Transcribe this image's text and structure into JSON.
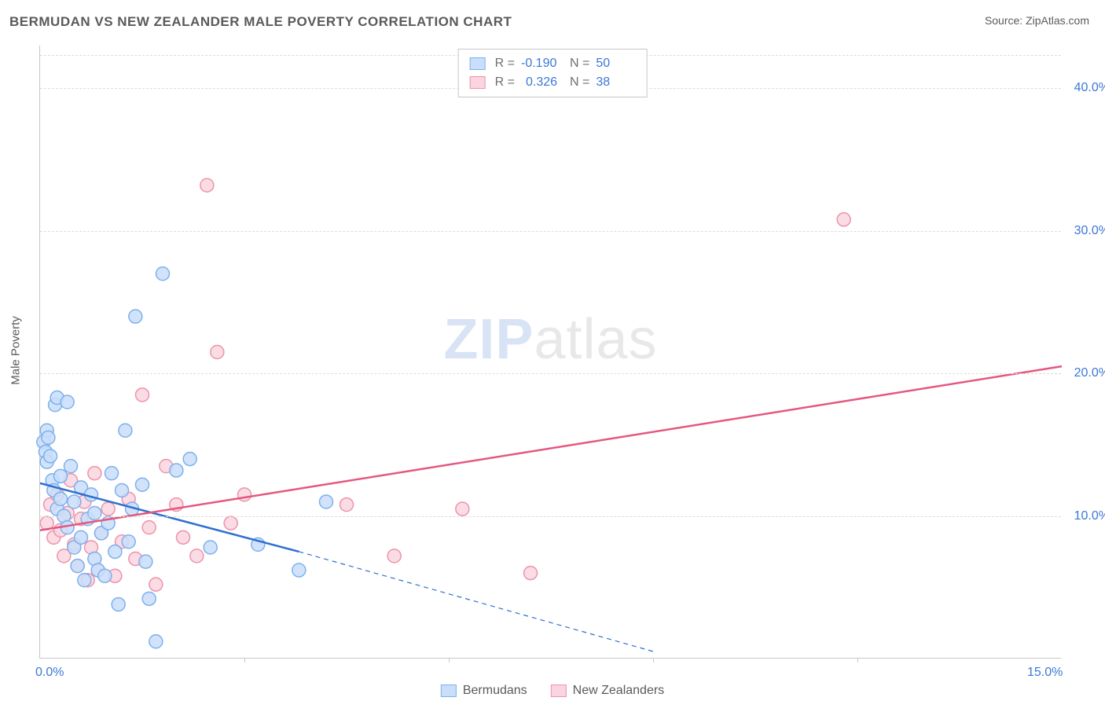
{
  "title": "BERMUDAN VS NEW ZEALANDER MALE POVERTY CORRELATION CHART",
  "source_label": "Source: ",
  "source_value": "ZipAtlas.com",
  "y_axis_label": "Male Poverty",
  "watermark_a": "ZIP",
  "watermark_b": "atlas",
  "chart": {
    "type": "scatter",
    "xlim": [
      0,
      15
    ],
    "ylim": [
      0,
      43
    ],
    "x_ticks_major": [
      0,
      15
    ],
    "x_ticks_minor": [
      3,
      6,
      9,
      12
    ],
    "y_ticks": [
      10,
      20,
      30,
      40
    ],
    "x_tick_labels": [
      "0.0%",
      "15.0%"
    ],
    "y_tick_labels": [
      "10.0%",
      "20.0%",
      "30.0%",
      "40.0%"
    ],
    "grid_color": "#dcdcdc",
    "axis_color": "#c7c7c7",
    "background": "#ffffff",
    "marker_radius": 8.5,
    "marker_stroke_width": 1.5,
    "line_width": 2.5
  },
  "series": {
    "bermudans": {
      "label": "Bermudans",
      "fill": "#c9defa",
      "stroke": "#7eb0ec",
      "line_color": "#2f6fd0",
      "r_value": "-0.190",
      "n_value": "50",
      "points": [
        [
          0.05,
          15.2
        ],
        [
          0.08,
          14.5
        ],
        [
          0.1,
          16.0
        ],
        [
          0.1,
          13.8
        ],
        [
          0.12,
          15.5
        ],
        [
          0.15,
          14.2
        ],
        [
          0.18,
          12.5
        ],
        [
          0.2,
          11.8
        ],
        [
          0.22,
          17.8
        ],
        [
          0.25,
          18.3
        ],
        [
          0.25,
          10.5
        ],
        [
          0.3,
          11.2
        ],
        [
          0.3,
          12.8
        ],
        [
          0.35,
          10.0
        ],
        [
          0.4,
          18.0
        ],
        [
          0.4,
          9.2
        ],
        [
          0.45,
          13.5
        ],
        [
          0.5,
          7.8
        ],
        [
          0.5,
          11.0
        ],
        [
          0.55,
          6.5
        ],
        [
          0.6,
          8.5
        ],
        [
          0.6,
          12.0
        ],
        [
          0.65,
          5.5
        ],
        [
          0.7,
          9.8
        ],
        [
          0.75,
          11.5
        ],
        [
          0.8,
          7.0
        ],
        [
          0.8,
          10.2
        ],
        [
          0.85,
          6.2
        ],
        [
          0.9,
          8.8
        ],
        [
          0.95,
          5.8
        ],
        [
          1.0,
          9.5
        ],
        [
          1.05,
          13.0
        ],
        [
          1.1,
          7.5
        ],
        [
          1.15,
          3.8
        ],
        [
          1.2,
          11.8
        ],
        [
          1.25,
          16.0
        ],
        [
          1.3,
          8.2
        ],
        [
          1.35,
          10.5
        ],
        [
          1.4,
          24.0
        ],
        [
          1.5,
          12.2
        ],
        [
          1.55,
          6.8
        ],
        [
          1.6,
          4.2
        ],
        [
          1.7,
          1.2
        ],
        [
          1.8,
          27.0
        ],
        [
          2.0,
          13.2
        ],
        [
          2.2,
          14.0
        ],
        [
          2.5,
          7.8
        ],
        [
          3.2,
          8.0
        ],
        [
          3.8,
          6.2
        ],
        [
          4.2,
          11.0
        ]
      ],
      "regression": {
        "x1": 0,
        "y1": 12.3,
        "x2": 3.8,
        "y2": 7.5,
        "dash_to_x": 9.0,
        "dash_to_y": 0.5
      }
    },
    "new_zealanders": {
      "label": "New Zealanders",
      "fill": "#fad5df",
      "stroke": "#ec94ab",
      "line_color": "#e5577f",
      "r_value": "0.326",
      "n_value": "38",
      "points": [
        [
          0.1,
          9.5
        ],
        [
          0.15,
          10.8
        ],
        [
          0.2,
          8.5
        ],
        [
          0.25,
          11.5
        ],
        [
          0.3,
          9.0
        ],
        [
          0.35,
          7.2
        ],
        [
          0.4,
          10.2
        ],
        [
          0.45,
          12.5
        ],
        [
          0.5,
          8.0
        ],
        [
          0.55,
          6.5
        ],
        [
          0.6,
          9.8
        ],
        [
          0.65,
          11.0
        ],
        [
          0.7,
          5.5
        ],
        [
          0.75,
          7.8
        ],
        [
          0.8,
          13.0
        ],
        [
          0.85,
          6.2
        ],
        [
          0.9,
          8.8
        ],
        [
          1.0,
          10.5
        ],
        [
          1.1,
          5.8
        ],
        [
          1.2,
          8.2
        ],
        [
          1.3,
          11.2
        ],
        [
          1.4,
          7.0
        ],
        [
          1.5,
          18.5
        ],
        [
          1.6,
          9.2
        ],
        [
          1.7,
          5.2
        ],
        [
          1.85,
          13.5
        ],
        [
          2.0,
          10.8
        ],
        [
          2.1,
          8.5
        ],
        [
          2.3,
          7.2
        ],
        [
          2.45,
          33.2
        ],
        [
          2.6,
          21.5
        ],
        [
          2.8,
          9.5
        ],
        [
          3.0,
          11.5
        ],
        [
          4.5,
          10.8
        ],
        [
          5.2,
          7.2
        ],
        [
          6.2,
          10.5
        ],
        [
          7.2,
          6.0
        ],
        [
          11.8,
          30.8
        ]
      ],
      "regression": {
        "x1": 0,
        "y1": 9.0,
        "x2": 15,
        "y2": 20.5
      }
    }
  },
  "stats_box": {
    "r_label": "R =",
    "n_label": "N ="
  }
}
